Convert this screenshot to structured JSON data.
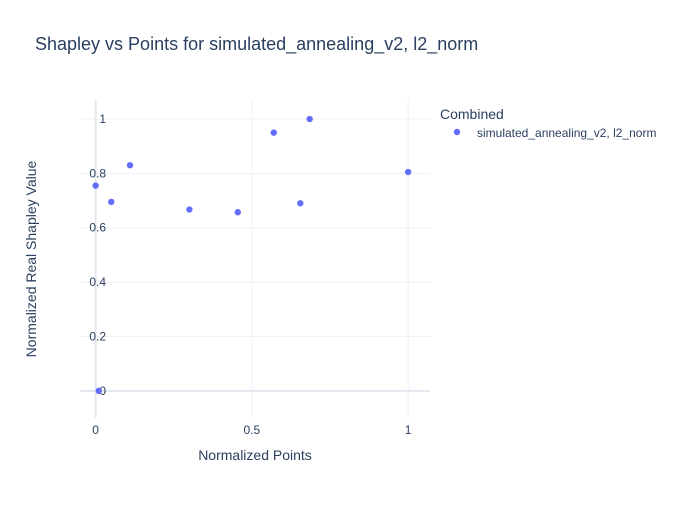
{
  "chart_data": {
    "type": "scatter",
    "title": "Shapley vs Points for simulated_annealing_v2, l2_norm",
    "xlabel": "Normalized Points",
    "ylabel": "Normalized Real Shapley Value",
    "xlim": [
      -0.05,
      1.07
    ],
    "ylim": [
      -0.1,
      1.07
    ],
    "x_ticks": [
      0,
      0.5,
      1
    ],
    "x_tick_labels": [
      "0",
      "0.5",
      "1"
    ],
    "y_ticks": [
      0,
      0.2,
      0.4,
      0.6,
      0.8,
      1
    ],
    "y_tick_labels": [
      "0",
      "0.2",
      "0.4",
      "0.6",
      "0.8",
      "1"
    ],
    "grid": true,
    "legend": {
      "title": "Combined",
      "placement": "top-right"
    },
    "series": [
      {
        "name": "simulated_annealing_v2, l2_norm",
        "color": "#636efa",
        "points": [
          {
            "x": 0.0,
            "y": 0.755
          },
          {
            "x": 0.01,
            "y": 0.0
          },
          {
            "x": 0.05,
            "y": 0.695
          },
          {
            "x": 0.11,
            "y": 0.83
          },
          {
            "x": 0.3,
            "y": 0.667
          },
          {
            "x": 0.455,
            "y": 0.657
          },
          {
            "x": 0.57,
            "y": 0.95
          },
          {
            "x": 0.655,
            "y": 0.69
          },
          {
            "x": 0.685,
            "y": 1.0
          },
          {
            "x": 1.0,
            "y": 0.805
          }
        ]
      }
    ]
  }
}
